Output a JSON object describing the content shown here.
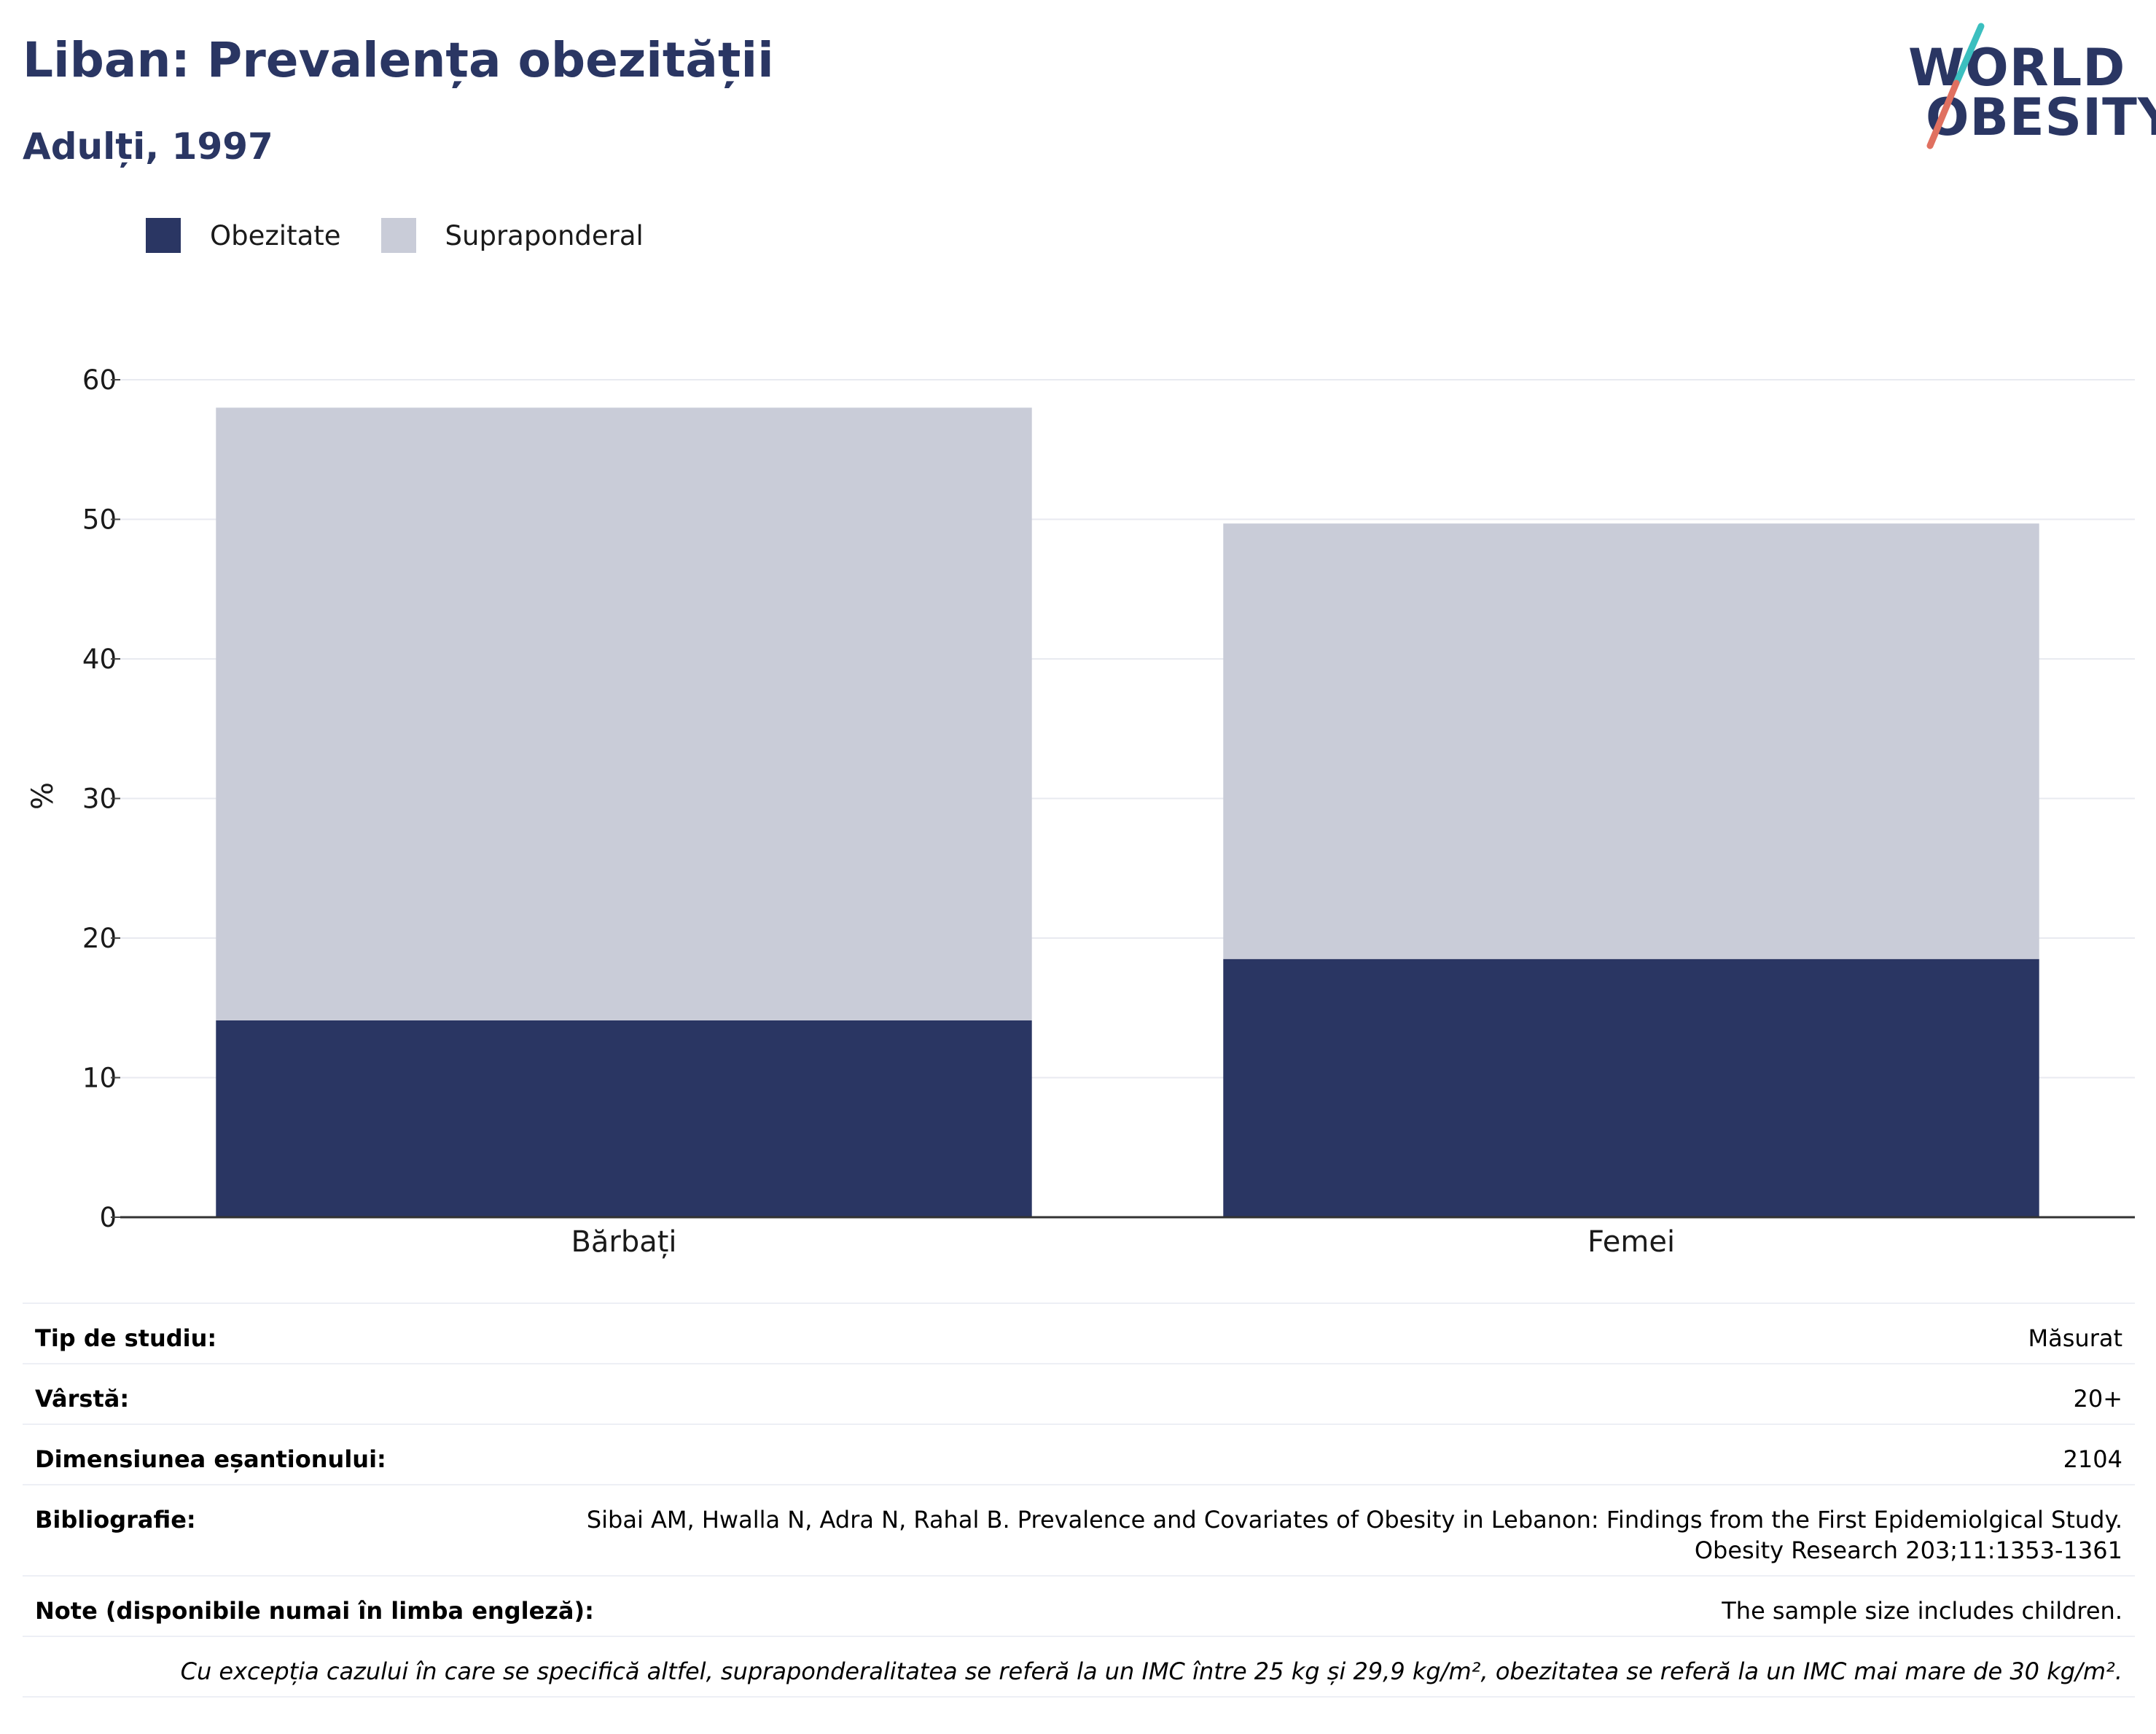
{
  "header": {
    "title": "Liban: Prevalența obezității",
    "subtitle": "Adulți, 1997"
  },
  "logo": {
    "line1": "WORLD",
    "line2": "OBESITY",
    "colors": {
      "text": "#2a3663",
      "stroke_top": "#3bbfbf",
      "stroke_bottom": "#e07060"
    }
  },
  "legend": {
    "items": [
      {
        "label": "Obezitate",
        "color": "#2a3663"
      },
      {
        "label": "Supraponderal",
        "color": "#c9ccd8"
      }
    ]
  },
  "chart_data": {
    "type": "bar",
    "stacked": true,
    "categories": [
      "Bărbați",
      "Femei"
    ],
    "series": [
      {
        "name": "Obezitate",
        "color": "#2a3663",
        "values": [
          14.1,
          18.5
        ]
      },
      {
        "name": "Supraponderal",
        "color": "#c9ccd8",
        "values": [
          43.9,
          31.2
        ]
      }
    ],
    "title": "Liban: Prevalența obezității",
    "subtitle": "Adulți, 1997",
    "xlabel": "",
    "ylabel": "%",
    "ylim": [
      0,
      60
    ],
    "yticks": [
      0,
      10,
      20,
      30,
      40,
      50,
      60
    ],
    "grid": true,
    "legend_position": "top-left"
  },
  "info": {
    "rows": [
      {
        "label": "Tip de studiu:",
        "value": "Măsurat"
      },
      {
        "label": "Vârstă:",
        "value": "20+"
      },
      {
        "label": "Dimensiunea eșantionului:",
        "value": "2104"
      },
      {
        "label": "Bibliografie:",
        "value_line1": "Sibai AM, Hwalla N, Adra N, Rahal B. Prevalence and Covariates of Obesity in Lebanon: Findings from the First Epidemiolgical Study.",
        "value_line2": "Obesity Research 203;11:1353-1361"
      },
      {
        "label": "Note (disponibile numai în limba engleză):",
        "value": "The sample size includes children."
      }
    ],
    "footnote": "Cu excepția cazului în care se specifică altfel, supraponderalitatea se referă la un IMC între 25 kg și 29,9 kg/m², obezitatea se referă la un IMC mai mare de 30 kg/m²."
  }
}
